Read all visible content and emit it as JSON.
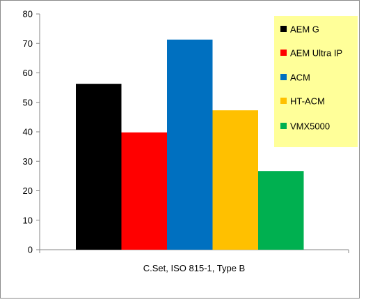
{
  "chart_data": {
    "type": "bar",
    "categories": [
      "C.Set, ISO 815-1, Type B"
    ],
    "series": [
      {
        "name": "AEM G",
        "values": [
          56.3
        ],
        "color": "#000000"
      },
      {
        "name": "AEM Ultra IP",
        "values": [
          39.8
        ],
        "color": "#ff0000"
      },
      {
        "name": "ACM",
        "values": [
          71.3
        ],
        "color": "#0070c0"
      },
      {
        "name": "HT-ACM",
        "values": [
          47.3
        ],
        "color": "#ffc000"
      },
      {
        "name": "VMX5000",
        "values": [
          26.7
        ],
        "color": "#00b050"
      }
    ],
    "ylim": [
      0,
      80
    ],
    "yticks": [
      "0",
      "10",
      "20",
      "30",
      "40",
      "50",
      "60",
      "70",
      "80"
    ],
    "grid": false,
    "legend": {
      "position": "top-right",
      "background": "#ffff99"
    }
  }
}
